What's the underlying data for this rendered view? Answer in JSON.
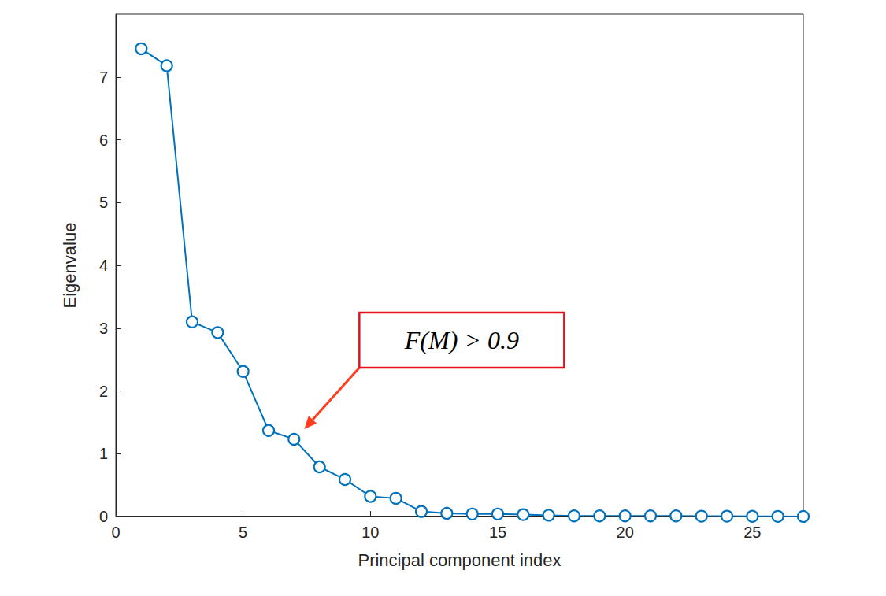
{
  "chart_data": {
    "type": "line",
    "x_label": "Principal component index",
    "y_label": "Eigenvalue",
    "x": [
      1,
      2,
      3,
      4,
      5,
      6,
      7,
      8,
      9,
      10,
      11,
      12,
      13,
      14,
      15,
      16,
      17,
      18,
      19,
      20,
      21,
      22,
      23,
      24,
      25,
      26,
      27
    ],
    "values": [
      7.45,
      7.18,
      3.1,
      2.93,
      2.31,
      1.37,
      1.23,
      0.79,
      0.59,
      0.32,
      0.29,
      0.08,
      0.05,
      0.04,
      0.04,
      0.03,
      0.02,
      0.01,
      0.01,
      0.01,
      0.01,
      0.01,
      0.005,
      0.005,
      0.003,
      0.002,
      0.001
    ],
    "color": "#0072bd",
    "marker": "circle",
    "xlim": [
      0,
      27
    ],
    "xticks": [
      0,
      5,
      10,
      15,
      20,
      25
    ],
    "ylim": [
      0,
      8
    ],
    "yticks": [
      0,
      1,
      2,
      3,
      4,
      5,
      6,
      7
    ],
    "grid": false,
    "annotations": [
      {
        "text": "F(M) > 0.9",
        "x": 7,
        "y": 1.23
      }
    ]
  }
}
